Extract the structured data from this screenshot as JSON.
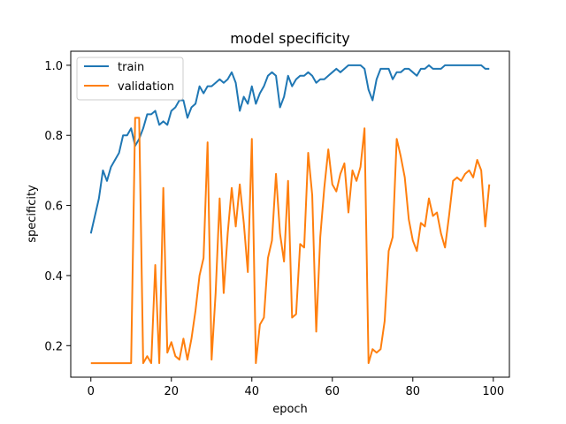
{
  "chart_data": {
    "type": "line",
    "title": "model specificity",
    "xlabel": "epoch",
    "ylabel": "specificity",
    "xlim": [
      -5,
      104
    ],
    "ylim": [
      0.11,
      1.04
    ],
    "xticks": [
      0,
      20,
      40,
      60,
      80,
      100
    ],
    "yticks": [
      0.2,
      0.4,
      0.6,
      0.8,
      1.0
    ],
    "xtick_labels": [
      "0",
      "20",
      "40",
      "60",
      "80",
      "100"
    ],
    "ytick_labels": [
      "0.2",
      "0.4",
      "0.6",
      "0.8",
      "1.0"
    ],
    "grid": false,
    "legend_position": "upper-left",
    "series": [
      {
        "name": "train",
        "color": "#1f77b4",
        "values": [
          0.52,
          0.57,
          0.62,
          0.7,
          0.67,
          0.71,
          0.73,
          0.75,
          0.8,
          0.8,
          0.82,
          0.77,
          0.79,
          0.82,
          0.86,
          0.86,
          0.87,
          0.83,
          0.84,
          0.83,
          0.87,
          0.88,
          0.9,
          0.9,
          0.85,
          0.88,
          0.89,
          0.94,
          0.92,
          0.94,
          0.94,
          0.95,
          0.96,
          0.95,
          0.96,
          0.98,
          0.95,
          0.87,
          0.91,
          0.89,
          0.94,
          0.89,
          0.92,
          0.94,
          0.97,
          0.98,
          0.97,
          0.88,
          0.91,
          0.97,
          0.94,
          0.96,
          0.97,
          0.97,
          0.98,
          0.97,
          0.95,
          0.96,
          0.96,
          0.97,
          0.98,
          0.99,
          0.98,
          0.99,
          1.0,
          1.0,
          1.0,
          1.0,
          0.99,
          0.93,
          0.9,
          0.96,
          0.99,
          0.99,
          0.99,
          0.96,
          0.98,
          0.98,
          0.99,
          0.99,
          0.98,
          0.97,
          0.99,
          0.99,
          1.0,
          0.99,
          0.99,
          0.99,
          1.0,
          1.0,
          1.0,
          1.0,
          1.0,
          1.0,
          1.0,
          1.0,
          1.0,
          1.0,
          0.99,
          0.99
        ]
      },
      {
        "name": "validation",
        "color": "#ff7f0e",
        "values": [
          0.15,
          0.15,
          0.15,
          0.15,
          0.15,
          0.15,
          0.15,
          0.15,
          0.15,
          0.15,
          0.15,
          0.85,
          0.85,
          0.15,
          0.17,
          0.15,
          0.43,
          0.15,
          0.65,
          0.18,
          0.21,
          0.17,
          0.16,
          0.22,
          0.16,
          0.22,
          0.3,
          0.4,
          0.45,
          0.78,
          0.16,
          0.35,
          0.62,
          0.35,
          0.52,
          0.65,
          0.54,
          0.66,
          0.55,
          0.41,
          0.79,
          0.15,
          0.26,
          0.28,
          0.45,
          0.5,
          0.69,
          0.52,
          0.44,
          0.67,
          0.28,
          0.29,
          0.49,
          0.48,
          0.75,
          0.63,
          0.24,
          0.51,
          0.65,
          0.76,
          0.66,
          0.64,
          0.69,
          0.72,
          0.58,
          0.7,
          0.67,
          0.71,
          0.82,
          0.15,
          0.19,
          0.18,
          0.19,
          0.27,
          0.47,
          0.51,
          0.79,
          0.74,
          0.68,
          0.56,
          0.5,
          0.47,
          0.55,
          0.54,
          0.62,
          0.57,
          0.58,
          0.52,
          0.48,
          0.57,
          0.67,
          0.68,
          0.67,
          0.69,
          0.7,
          0.68,
          0.73,
          0.7,
          0.54,
          0.66
        ]
      }
    ]
  }
}
